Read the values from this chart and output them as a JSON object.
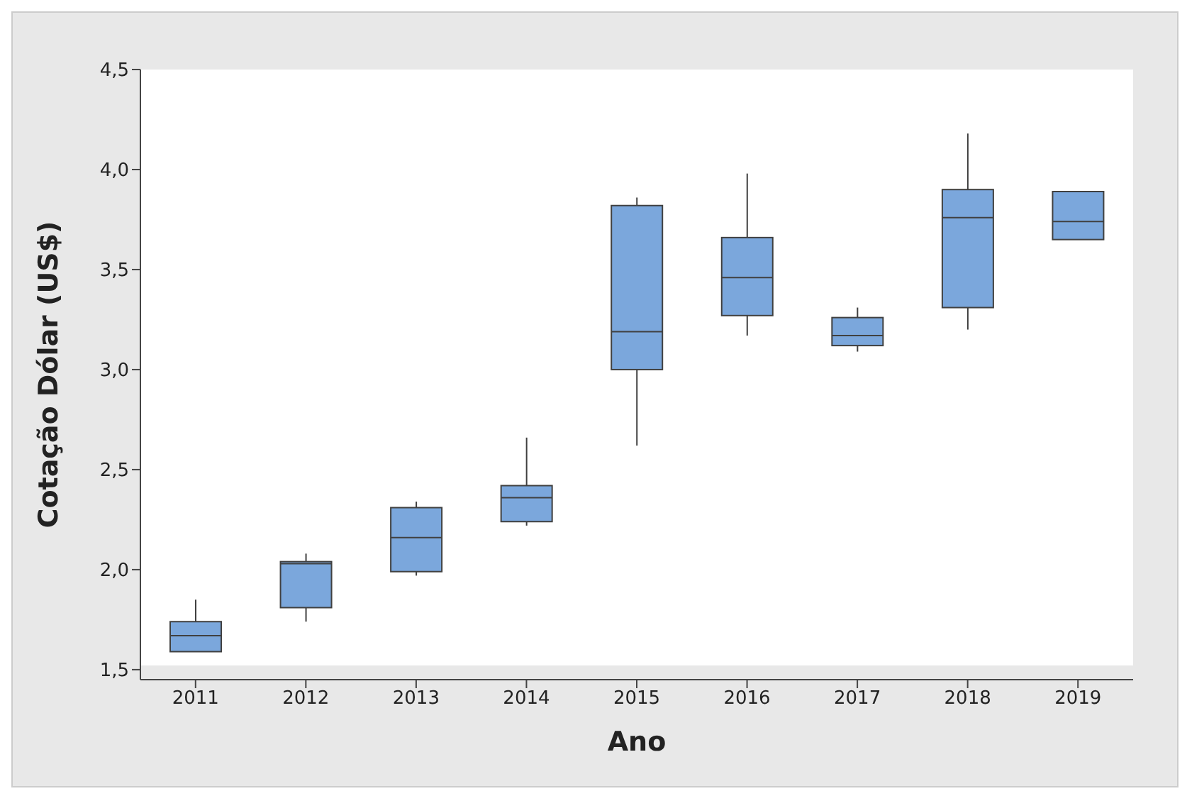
{
  "chart_data": {
    "type": "box",
    "xlabel": "Ano",
    "ylabel": "Cotação Dólar (US$)",
    "categories": [
      "2011",
      "2012",
      "2013",
      "2014",
      "2015",
      "2016",
      "2017",
      "2018",
      "2019"
    ],
    "color": "#7ba7dc",
    "ylim": [
      1.45,
      4.5
    ],
    "yticks": [
      {
        "value": 1.5,
        "label": "1,5"
      },
      {
        "value": 2,
        "label": "2,0"
      },
      {
        "value": 2.5,
        "label": "2,5"
      },
      {
        "value": 3,
        "label": "3,0"
      },
      {
        "value": 3.5,
        "label": "3,5"
      },
      {
        "value": 4,
        "label": "4,0"
      },
      {
        "value": 4.5,
        "label": "4,5"
      }
    ],
    "boxes": [
      {
        "low": 1.59,
        "q1": 1.59,
        "median": 1.67,
        "q3": 1.74,
        "high": 1.85
      },
      {
        "low": 1.74,
        "q1": 1.81,
        "median": 2.03,
        "q3": 2.04,
        "high": 2.08
      },
      {
        "low": 1.97,
        "q1": 1.99,
        "median": 2.16,
        "q3": 2.31,
        "high": 2.34
      },
      {
        "low": 2.22,
        "q1": 2.24,
        "median": 2.36,
        "q3": 2.42,
        "high": 2.66
      },
      {
        "low": 2.62,
        "q1": 3.0,
        "median": 3.19,
        "q3": 3.82,
        "high": 3.86
      },
      {
        "low": 3.17,
        "q1": 3.27,
        "median": 3.46,
        "q3": 3.66,
        "high": 3.98
      },
      {
        "low": 3.09,
        "q1": 3.12,
        "median": 3.17,
        "q3": 3.26,
        "high": 3.31
      },
      {
        "low": 3.2,
        "q1": 3.31,
        "median": 3.76,
        "q3": 3.9,
        "high": 4.18
      },
      {
        "low": 3.65,
        "q1": 3.65,
        "median": 3.74,
        "q3": 3.89,
        "high": 3.89
      }
    ]
  }
}
